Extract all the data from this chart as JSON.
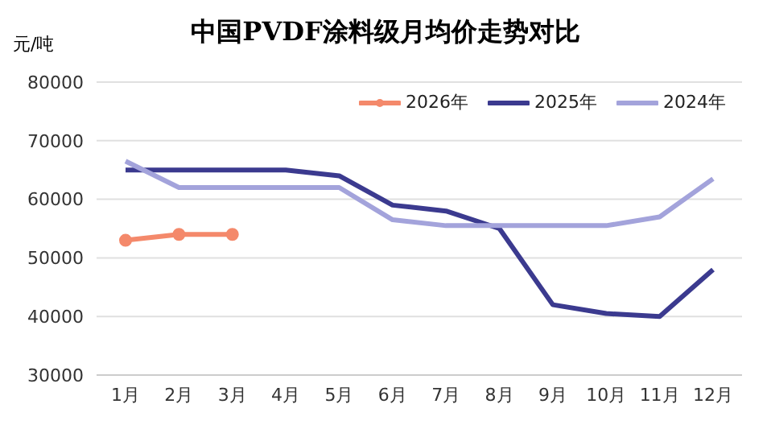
{
  "chart_data": {
    "type": "line",
    "title": "中国PVDF涂料级月均价走势对比",
    "ylabel": "元/吨",
    "categories": [
      "1月",
      "2月",
      "3月",
      "4月",
      "5月",
      "6月",
      "7月",
      "8月",
      "9月",
      "10月",
      "11月",
      "12月"
    ],
    "series": [
      {
        "name": "2026年",
        "color": "#f4896b",
        "marker": "circle",
        "values": [
          53000,
          54000,
          54000,
          null,
          null,
          null,
          null,
          null,
          null,
          null,
          null,
          null
        ]
      },
      {
        "name": "2025年",
        "color": "#3b3a8f",
        "marker": "none",
        "values": [
          65000,
          65000,
          65000,
          65000,
          64000,
          59000,
          58000,
          55000,
          42000,
          40500,
          40000,
          48000
        ]
      },
      {
        "name": "2024年",
        "color": "#a3a3db",
        "marker": "none",
        "values": [
          66500,
          62000,
          62000,
          62000,
          62000,
          56500,
          55500,
          55500,
          55500,
          55500,
          57000,
          63500
        ]
      }
    ],
    "ylim": [
      30000,
      80000
    ],
    "yticks": [
      30000,
      40000,
      50000,
      60000,
      70000,
      80000
    ],
    "grid": "y",
    "legend": "top right"
  }
}
